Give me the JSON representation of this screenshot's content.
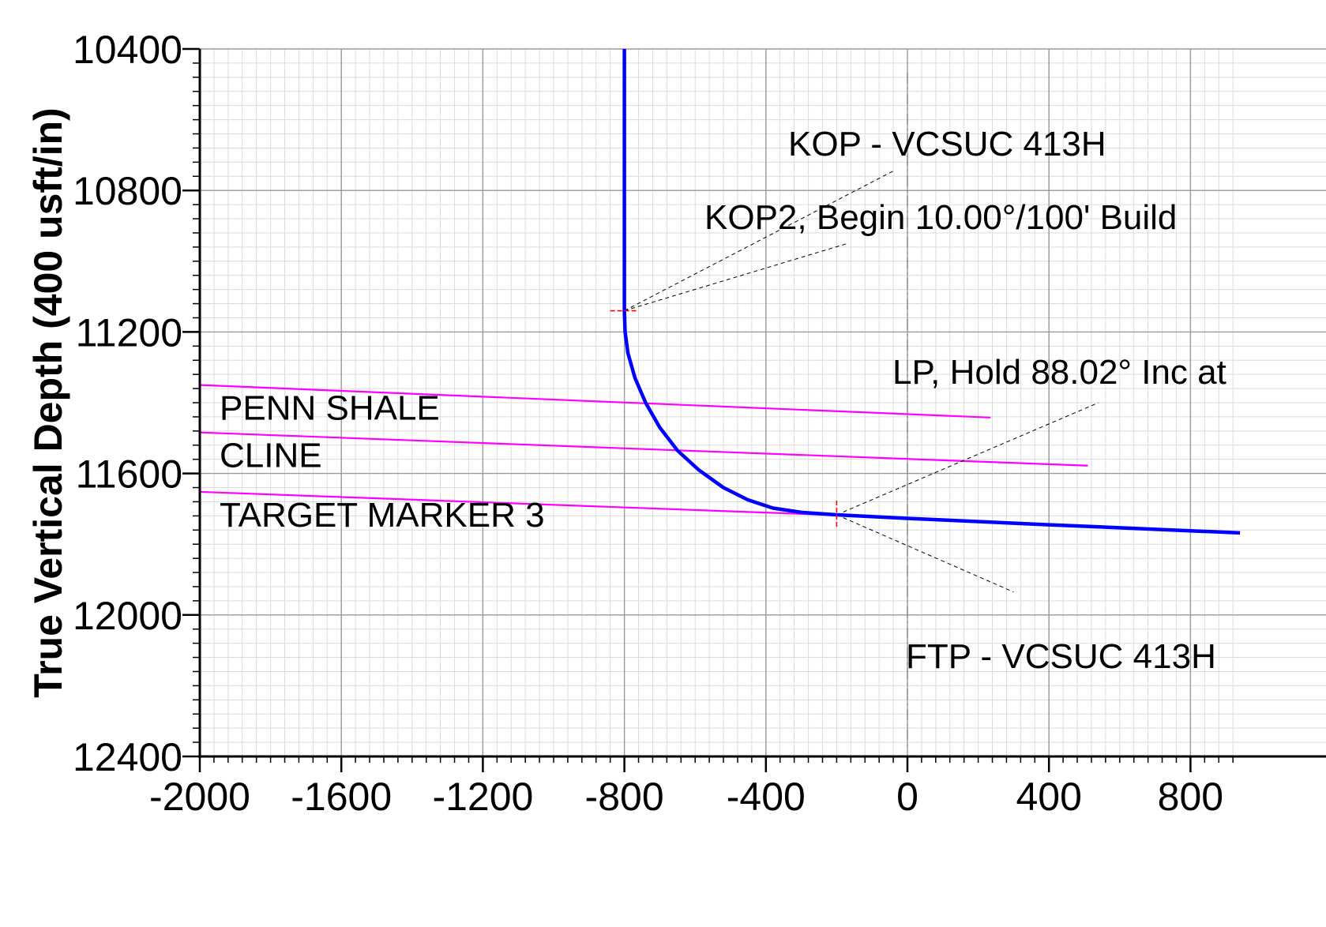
{
  "chart_data": {
    "type": "line",
    "ylabel": "True Vertical Depth (400 usft/in)",
    "xlabel": "",
    "xlim": [
      -2000,
      940
    ],
    "ylim": [
      10400,
      12400
    ],
    "y_inverted": true,
    "x_ticks": [
      -2000,
      -1600,
      -1200,
      -800,
      -400,
      0,
      400,
      800
    ],
    "x_tick_labels": [
      "-2000",
      "-1600",
      "-1200",
      "-800",
      "-400",
      "0",
      "400",
      "800"
    ],
    "y_ticks": [
      10400,
      10800,
      11200,
      11600,
      12000,
      12400
    ],
    "y_tick_labels": [
      "10400",
      "10800",
      "11200",
      "11600",
      "12000",
      "12400"
    ],
    "grid": true,
    "series": [
      {
        "color": "#0000ff",
        "points": [
          [
            -800,
            10400
          ],
          [
            -800,
            11140
          ],
          [
            -798,
            11200
          ],
          [
            -790,
            11260
          ],
          [
            -770,
            11330
          ],
          [
            -740,
            11400
          ],
          [
            -700,
            11470
          ],
          [
            -650,
            11535
          ],
          [
            -590,
            11590
          ],
          [
            -520,
            11640
          ],
          [
            -450,
            11675
          ],
          [
            -380,
            11698
          ],
          [
            -300,
            11710
          ],
          [
            -200,
            11717
          ],
          [
            0,
            11727
          ],
          [
            400,
            11745
          ],
          [
            800,
            11762
          ],
          [
            940,
            11768
          ]
        ]
      }
    ],
    "formations": [
      {
        "name": "PENN SHALE",
        "color": "#ff00ff",
        "x": [
          -2000,
          235
        ],
        "y": [
          11350,
          11442
        ]
      },
      {
        "name": "CLINE",
        "color": "#ff00ff",
        "x": [
          -2000,
          510
        ],
        "y": [
          11484,
          11578
        ]
      },
      {
        "name": "TARGET MARKER 3",
        "color": "#ff00ff",
        "x": [
          -2000,
          -200
        ],
        "y": [
          11652,
          11718
        ]
      }
    ],
    "section_line_x": 0,
    "markers": [
      {
        "x": -800,
        "y": 11140,
        "color": "#ff0000"
      },
      {
        "x": -200,
        "y": 11717,
        "color": "#ff0000"
      }
    ],
    "annotations": [
      {
        "text": "KOP - VCSUC 413H",
        "target": [
          -800,
          11140
        ],
        "anchor": [
          -40,
          10745
        ]
      },
      {
        "text": "KOP2, Begin 10.00°/100' Build",
        "target": [
          -800,
          11140
        ],
        "anchor": [
          -170,
          10950
        ]
      },
      {
        "text": "LP, Hold 88.02° Inc at",
        "target": [
          -200,
          11717
        ],
        "anchor": [
          540,
          11400
        ]
      },
      {
        "text": "FTP - VCSUC 413H",
        "target": [
          -200,
          11717
        ],
        "anchor": [
          300,
          11935
        ]
      }
    ]
  }
}
